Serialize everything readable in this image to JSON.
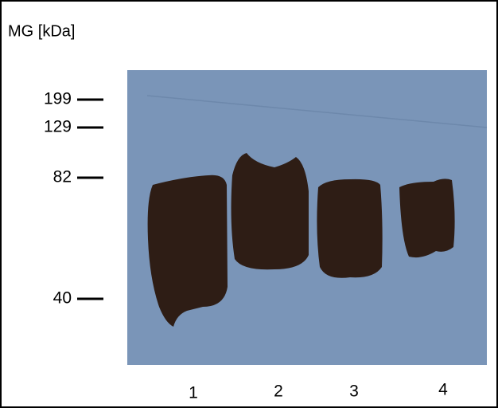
{
  "header": {
    "title": "MG [kDa]"
  },
  "markers": [
    {
      "label": "199"
    },
    {
      "label": "129"
    },
    {
      "label": "82"
    },
    {
      "label": "40"
    }
  ],
  "lanes": [
    {
      "label": "1"
    },
    {
      "label": "2"
    },
    {
      "label": "3"
    },
    {
      "label": "4"
    }
  ]
}
